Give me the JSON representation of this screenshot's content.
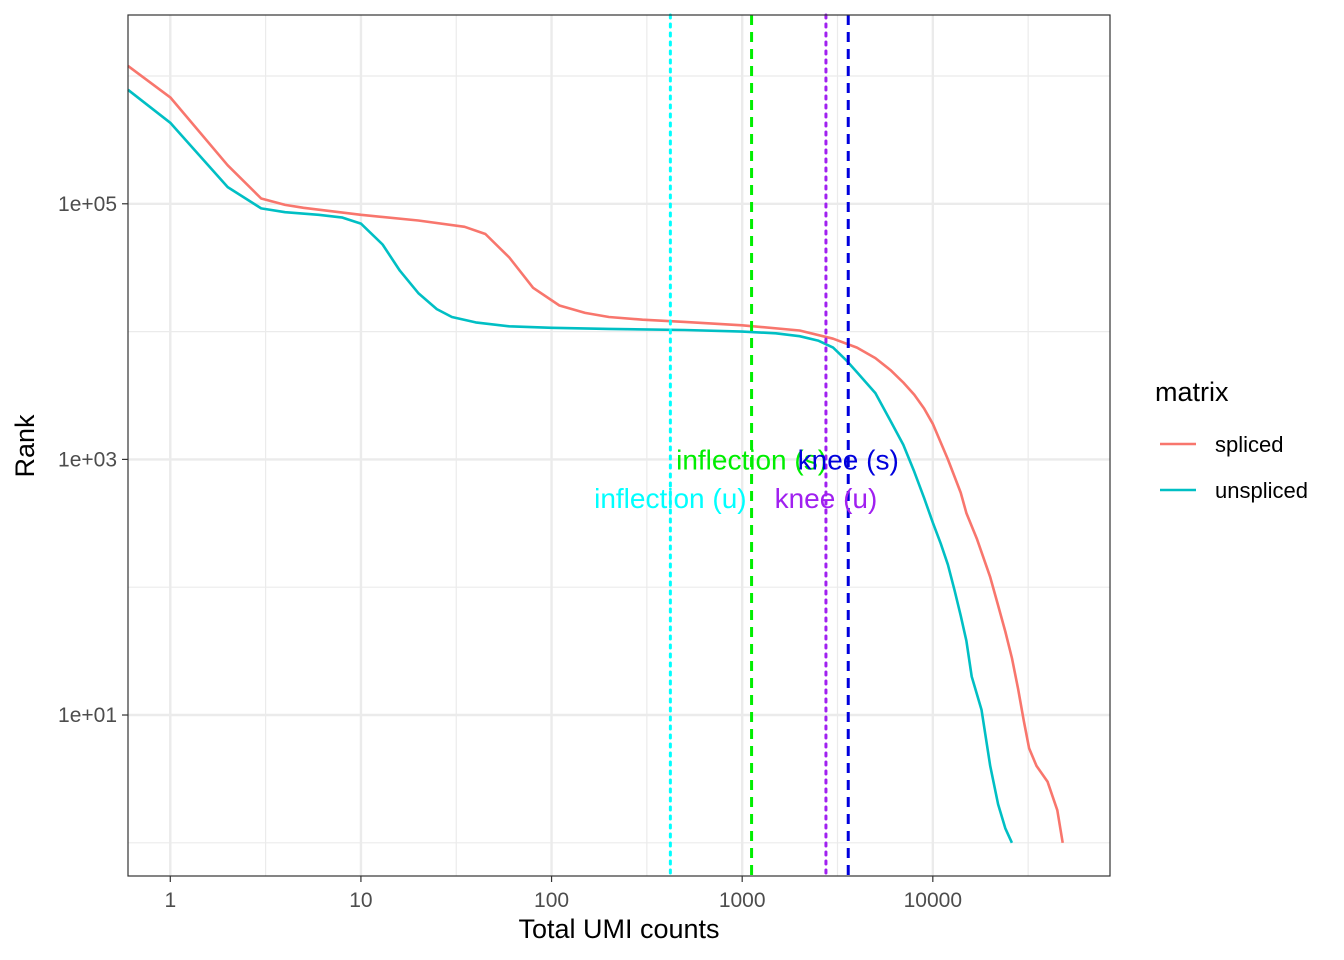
{
  "chart_data": {
    "type": "line",
    "xlabel": "Total UMI counts",
    "ylabel": "Rank",
    "x_scale": "log10",
    "y_scale": "log10",
    "xlim": [
      0.6,
      85000
    ],
    "ylim": [
      0.55,
      3000000
    ],
    "x_ticks": [
      {
        "value": 1,
        "label": "1"
      },
      {
        "value": 10,
        "label": "10"
      },
      {
        "value": 100,
        "label": "100"
      },
      {
        "value": 1000,
        "label": "1000"
      },
      {
        "value": 10000,
        "label": "10000"
      }
    ],
    "y_ticks": [
      {
        "value": 10,
        "label": "1e+01"
      },
      {
        "value": 1000,
        "label": "1e+03"
      },
      {
        "value": 100000,
        "label": "1e+05"
      }
    ],
    "grid": true,
    "legend": {
      "title": "matrix",
      "position": "right",
      "entries": [
        "spliced",
        "unspliced"
      ]
    },
    "series": [
      {
        "name": "spliced",
        "color": "#F8766D",
        "points": [
          [
            0.6,
            1200000
          ],
          [
            1,
            680000
          ],
          [
            2,
            200000
          ],
          [
            3,
            110000
          ],
          [
            4,
            98000
          ],
          [
            5,
            93000
          ],
          [
            10,
            82000
          ],
          [
            20,
            74000
          ],
          [
            35,
            66000
          ],
          [
            45,
            58000
          ],
          [
            60,
            38000
          ],
          [
            80,
            22000
          ],
          [
            110,
            16000
          ],
          [
            150,
            14000
          ],
          [
            200,
            13000
          ],
          [
            300,
            12400
          ],
          [
            500,
            11900
          ],
          [
            1000,
            11200
          ],
          [
            2000,
            10200
          ],
          [
            3000,
            8800
          ],
          [
            4000,
            7500
          ],
          [
            5000,
            6200
          ],
          [
            6000,
            5000
          ],
          [
            7000,
            4000
          ],
          [
            8000,
            3200
          ],
          [
            9000,
            2500
          ],
          [
            10000,
            1900
          ],
          [
            12000,
            1000
          ],
          [
            14000,
            550
          ],
          [
            15000,
            380
          ],
          [
            17000,
            240
          ],
          [
            20000,
            120
          ],
          [
            22000,
            72
          ],
          [
            24000,
            45
          ],
          [
            26000,
            28
          ],
          [
            28000,
            16
          ],
          [
            30000,
            9
          ],
          [
            32000,
            5.5
          ],
          [
            35000,
            4
          ],
          [
            40000,
            3
          ],
          [
            45000,
            1.8
          ],
          [
            48000,
            1
          ]
        ]
      },
      {
        "name": "unspliced",
        "color": "#00BFC4",
        "points": [
          [
            0.6,
            780000
          ],
          [
            1,
            430000
          ],
          [
            2,
            135000
          ],
          [
            3,
            92000
          ],
          [
            4,
            86000
          ],
          [
            6,
            82000
          ],
          [
            8,
            78000
          ],
          [
            10,
            70000
          ],
          [
            13,
            48000
          ],
          [
            16,
            30000
          ],
          [
            20,
            20000
          ],
          [
            25,
            15000
          ],
          [
            30,
            13000
          ],
          [
            40,
            11800
          ],
          [
            60,
            11000
          ],
          [
            100,
            10700
          ],
          [
            200,
            10500
          ],
          [
            500,
            10300
          ],
          [
            1000,
            10000
          ],
          [
            1500,
            9700
          ],
          [
            2000,
            9200
          ],
          [
            2500,
            8500
          ],
          [
            3000,
            7500
          ],
          [
            3500,
            6000
          ],
          [
            4000,
            4800
          ],
          [
            5000,
            3300
          ],
          [
            6000,
            2000
          ],
          [
            7000,
            1300
          ],
          [
            8000,
            800
          ],
          [
            9000,
            500
          ],
          [
            10000,
            320
          ],
          [
            11000,
            220
          ],
          [
            12000,
            150
          ],
          [
            13000,
            95
          ],
          [
            14000,
            60
          ],
          [
            15000,
            38
          ],
          [
            16000,
            20
          ],
          [
            18000,
            11
          ],
          [
            20000,
            4
          ],
          [
            22000,
            2
          ],
          [
            24000,
            1.3
          ],
          [
            26000,
            1
          ]
        ]
      }
    ],
    "vlines": [
      {
        "x": 1120,
        "color": "#00EE00",
        "style": "dashed",
        "label": "inflection (s)",
        "label_y": 1000
      },
      {
        "x": 3600,
        "color": "#0000DD",
        "style": "dashed",
        "label": "knee (s)",
        "label_y": 1000
      },
      {
        "x": 420,
        "color": "#00FFFF",
        "style": "dotted",
        "label": "inflection (u)",
        "label_y": 500
      },
      {
        "x": 2750,
        "color": "#A020F0",
        "style": "dotted",
        "label": "knee (u)",
        "label_y": 500
      }
    ]
  }
}
